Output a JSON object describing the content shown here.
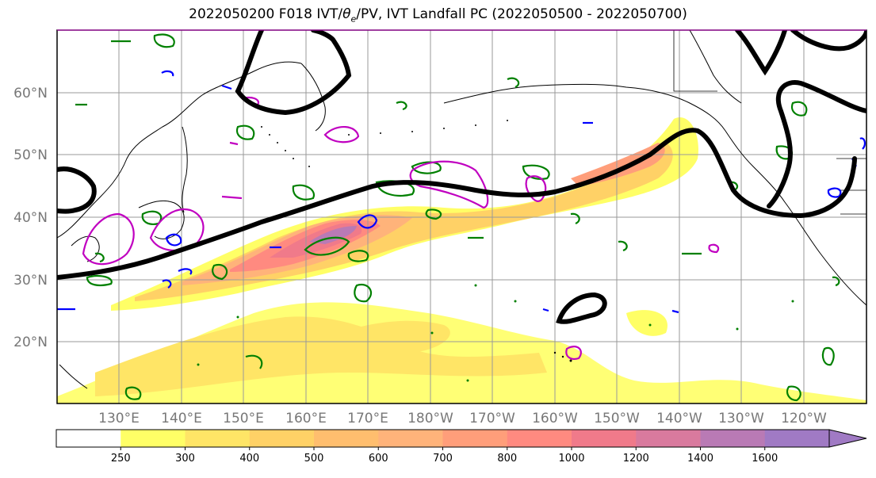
{
  "title": {
    "prefix": "2022050200 F018 IVT/",
    "theta": "θ",
    "theta_sub": "e",
    "suffix": "/PV, IVT Landfall PC (2022050500 - 2022050700)"
  },
  "axes": {
    "lat_labels": [
      "60°N",
      "50°N",
      "40°N",
      "30°N",
      "20°N"
    ],
    "lon_labels": [
      "130°E",
      "140°E",
      "150°E",
      "160°E",
      "170°E",
      "180°W",
      "170°W",
      "160°W",
      "150°W",
      "140°W",
      "130°W",
      "120°W"
    ],
    "label_color": "#777777",
    "grid": true
  },
  "colorbar": {
    "ticks": [
      "250",
      "300",
      "400",
      "500",
      "600",
      "700",
      "800",
      "1000",
      "1200",
      "1400",
      "1600"
    ],
    "colors": [
      "#ffffff",
      "#ffff66",
      "#ffe566",
      "#ffd166",
      "#ffbe6e",
      "#ffb37a",
      "#ff9e7a",
      "#ff8a80",
      "#f07a8a",
      "#d97a9e",
      "#b97ab5",
      "#a07ac4"
    ],
    "extend": "max"
  },
  "legend_colors": {
    "ivt_fill_low": "#ffff66",
    "ivt_fill_high": "#a07ac4",
    "pc_contour": "#000000",
    "theta_e_contour": "#008000",
    "pv_contour_magenta": "#c000c0",
    "pv_contour_blue": "#0000ff"
  }
}
